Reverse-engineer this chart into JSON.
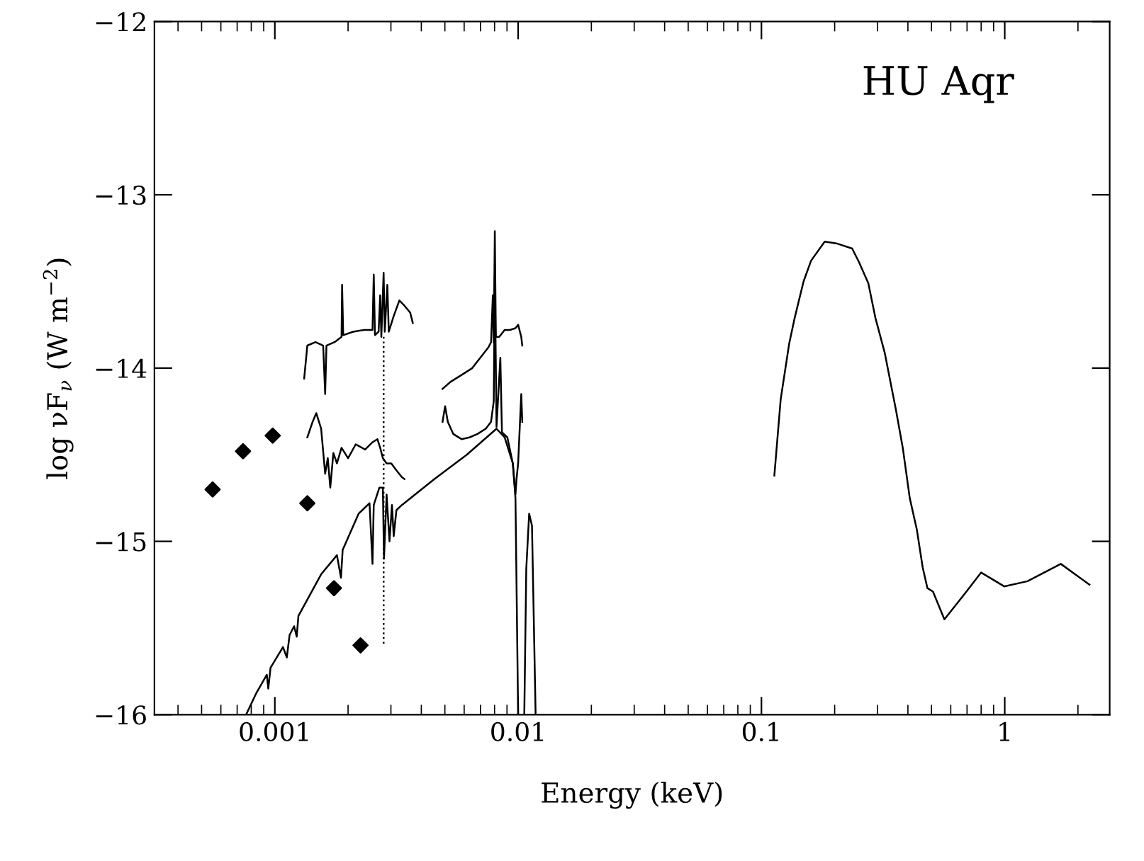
{
  "chart_data": {
    "type": "line",
    "xlabel": "Energy (keV)",
    "ylabel": "log νF$_{ν}$ (W m$^{−2}$)",
    "log": "x",
    "xlim": [
      0.00032,
      2.7
    ],
    "ylim": [
      -16,
      -12
    ],
    "xticks": [
      {
        "value": 0.001,
        "label": "0.001"
      },
      {
        "value": 0.01,
        "label": "0.01"
      },
      {
        "value": 0.1,
        "label": "0.1"
      },
      {
        "value": 1,
        "label": "1"
      }
    ],
    "yticks": [
      -16,
      -15,
      -14,
      -13,
      -12
    ],
    "grid": false,
    "legend": false,
    "annotations": [
      "HU Aqr"
    ],
    "series": [
      {
        "type": "scatter",
        "marker": "diamond",
        "color": "#000000",
        "x": [
          0.000555,
          0.00074,
          0.00098,
          0.00136,
          0.00175,
          0.00225
        ],
        "values": [
          -14.7,
          -14.48,
          -14.39,
          -14.78,
          -15.27,
          -15.6
        ]
      },
      {
        "color": "#000000",
        "x": [
          0.00132,
          0.00136,
          0.00147,
          0.00158,
          0.00161,
          0.00163,
          0.00176,
          0.00188,
          0.00189,
          0.00191,
          0.0021,
          0.00233,
          0.00252,
          0.00255,
          0.00258,
          0.00267,
          0.00271,
          0.00274,
          0.0028,
          0.00283,
          0.0029,
          0.00294,
          0.00308,
          0.00325,
          0.00341,
          0.0036,
          0.00369
        ],
        "values": [
          -14.06,
          -13.87,
          -13.85,
          -13.87,
          -14.15,
          -13.87,
          -13.85,
          -13.82,
          -13.52,
          -13.81,
          -13.79,
          -13.78,
          -13.78,
          -13.46,
          -13.81,
          -13.79,
          -13.58,
          -13.82,
          -13.45,
          -13.79,
          -13.52,
          -13.79,
          -13.7,
          -13.61,
          -13.64,
          -13.68,
          -13.74
        ]
      },
      {
        "color": "#000000",
        "x": [
          0.00136,
          0.00143,
          0.00148,
          0.00155,
          0.00161,
          0.00165,
          0.00169,
          0.00174,
          0.0018,
          0.00188,
          0.002,
          0.00215,
          0.00235,
          0.00251,
          0.00264,
          0.00271,
          0.00278,
          0.00288,
          0.00301,
          0.00316,
          0.00333,
          0.00341
        ],
        "values": [
          -14.4,
          -14.31,
          -14.26,
          -14.35,
          -14.61,
          -14.52,
          -14.69,
          -14.49,
          -14.55,
          -14.46,
          -14.52,
          -14.44,
          -14.47,
          -14.43,
          -14.41,
          -14.46,
          -14.52,
          -14.55,
          -14.55,
          -14.59,
          -14.63,
          -14.64
        ]
      },
      {
        "line_style": "dotted",
        "color": "#000000",
        "x": [
          0.0028,
          0.0028
        ],
        "values": [
          -13.82,
          -15.6
        ]
      },
      {
        "color": "#000000",
        "x": [
          0.00489,
          0.00527,
          0.00585,
          0.00648,
          0.00699,
          0.00755,
          0.00774,
          0.00787,
          0.00794,
          0.00802,
          0.0081,
          0.00836,
          0.0088,
          0.00926,
          0.00975,
          0.01,
          0.0103,
          0.0104
        ],
        "values": [
          -14.12,
          -14.08,
          -14.04,
          -14.0,
          -13.94,
          -13.88,
          -13.85,
          -13.58,
          -13.85,
          -13.21,
          -13.82,
          -13.82,
          -13.78,
          -13.78,
          -13.77,
          -13.75,
          -13.82,
          -13.87
        ]
      },
      {
        "color": "#000000",
        "x": [
          0.00489,
          0.00501,
          0.00514,
          0.00541,
          0.00585,
          0.00631,
          0.00681,
          0.00736,
          0.00774,
          0.00794,
          0.00802,
          0.00815,
          0.00845,
          0.00858,
          0.00903,
          0.00951,
          0.00975,
          0.00985,
          0.01,
          0.0102,
          0.0103,
          0.0104
        ],
        "values": [
          -14.31,
          -14.22,
          -14.31,
          -14.38,
          -14.41,
          -14.4,
          -14.38,
          -14.35,
          -14.31,
          -14.19,
          -13.46,
          -14.34,
          -13.94,
          -14.37,
          -14.4,
          -14.55,
          -14.73,
          -14.64,
          -14.55,
          -14.28,
          -14.15,
          -14.31
        ]
      },
      {
        "color": "#000000",
        "x": [
          0.000762,
          0.000836,
          0.000927,
          0.00094,
          0.00096,
          0.00108,
          0.00112,
          0.00115,
          0.0012,
          0.00123,
          0.00125,
          0.00155,
          0.0018,
          0.00187,
          0.0019,
          0.00221,
          0.00245,
          0.00252,
          0.00255,
          0.00269,
          0.00278,
          0.00281,
          0.00288,
          0.00296,
          0.00303,
          0.00308,
          0.00316,
          0.00333,
          0.00453,
          0.00615,
          0.00815,
          0.0088,
          0.00951,
          0.00975,
          0.01
        ],
        "values": [
          -16.0,
          -15.88,
          -15.77,
          -15.85,
          -15.73,
          -15.61,
          -15.67,
          -15.54,
          -15.49,
          -15.55,
          -15.43,
          -15.19,
          -15.08,
          -15.21,
          -15.05,
          -14.84,
          -14.78,
          -15.13,
          -14.79,
          -14.69,
          -14.69,
          -15.1,
          -14.73,
          -15.0,
          -14.79,
          -14.97,
          -14.82,
          -14.79,
          -14.64,
          -14.5,
          -14.35,
          -14.4,
          -14.55,
          -14.75,
          -16.0
        ]
      },
      {
        "color": "#000000",
        "x": [
          0.0106,
          0.0108,
          0.0111,
          0.0114,
          0.0118
        ],
        "values": [
          -16.0,
          -15.16,
          -14.84,
          -14.91,
          -16.0
        ]
      },
      {
        "color": "#000000",
        "x": [
          0.113,
          0.12,
          0.13,
          0.137,
          0.149,
          0.16,
          0.182,
          0.203,
          0.236,
          0.252,
          0.275,
          0.294,
          0.321,
          0.357,
          0.381,
          0.407,
          0.435,
          0.46,
          0.481,
          0.507,
          0.565,
          0.687,
          0.8,
          0.995,
          1.24,
          1.7,
          2.23
        ],
        "values": [
          -14.62,
          -14.18,
          -13.86,
          -13.71,
          -13.5,
          -13.38,
          -13.27,
          -13.28,
          -13.31,
          -13.39,
          -13.51,
          -13.71,
          -13.91,
          -14.24,
          -14.46,
          -14.75,
          -14.93,
          -15.15,
          -15.27,
          -15.29,
          -15.45,
          -15.3,
          -15.18,
          -15.26,
          -15.23,
          -15.13,
          -15.25
        ]
      }
    ]
  }
}
